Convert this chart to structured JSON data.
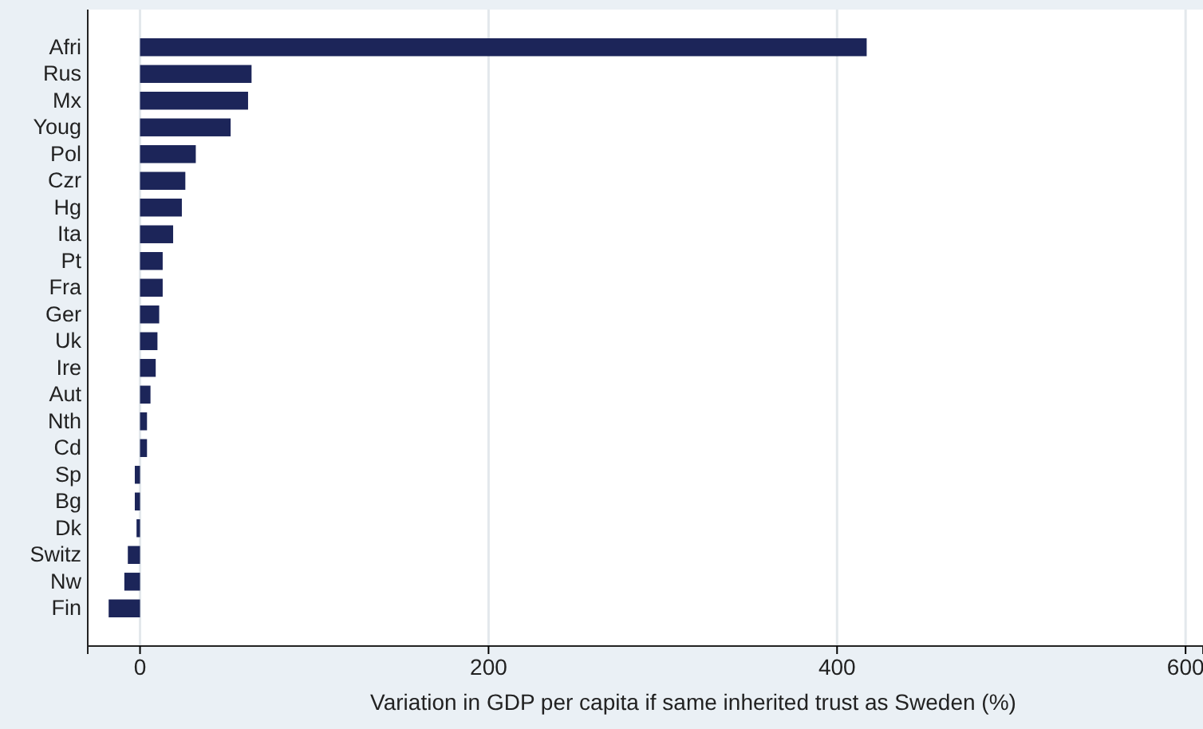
{
  "chart_data": {
    "type": "bar",
    "orientation": "horizontal",
    "categories": [
      "Afri",
      "Rus",
      "Mx",
      "Youg",
      "Pol",
      "Czr",
      "Hg",
      "Ita",
      "Pt",
      "Fra",
      "Ger",
      "Uk",
      "Ire",
      "Aut",
      "Nth",
      "Cd",
      "Sp",
      "Bg",
      "Dk",
      "Switz",
      "Nw",
      "Fin"
    ],
    "values": [
      417,
      64,
      62,
      52,
      32,
      26,
      24,
      19,
      13,
      13,
      11,
      10,
      9,
      6,
      4,
      4,
      -3,
      -3,
      -2,
      -7,
      -9,
      -18
    ],
    "color": "#1c2559",
    "xlim": [
      -30,
      610
    ],
    "xticks": [
      0,
      200,
      400,
      600
    ],
    "grid": "x",
    "xlabel": "Variation in GDP per capita if same inherited trust as Sweden (%)"
  }
}
